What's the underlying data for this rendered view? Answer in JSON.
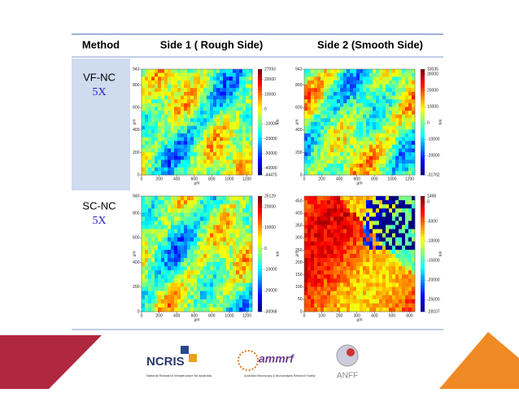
{
  "table": {
    "headers": [
      "Method",
      "Side 1 ( Rough Side)",
      "Side 2 (Smooth Side)"
    ],
    "rows": [
      {
        "method": "VF-NC",
        "magnification": "5X",
        "panels": [
          {
            "xlim": [
              0,
              1260
            ],
            "ylim": [
              0,
              943
            ],
            "xticks": [
              0,
              200,
              400,
              600,
              800,
              1000,
              1200
            ],
            "yticks": [
              0,
              200,
              400,
              600,
              800,
              943
            ],
            "xlabel": "µm",
            "ylabel": "µm",
            "colorbar_ticks": [
              27093,
              20000,
              10000,
              0,
              -10000,
              -20000,
              -30000,
              -40000,
              -44475
            ],
            "colorbar_unit": "nm"
          },
          {
            "xlim": [
              0,
              1260
            ],
            "ylim": [
              0,
              943
            ],
            "xticks": [
              0,
              200,
              400,
              600,
              800,
              1000,
              1200
            ],
            "yticks": [
              0,
              200,
              400,
              600,
              800,
              943
            ],
            "xlabel": "µm",
            "ylabel": "µm",
            "colorbar_ticks": [
              33035,
              30000,
              20000,
              10000,
              0,
              -10000,
              -20000,
              -31762
            ],
            "colorbar_unit": "nm"
          }
        ]
      },
      {
        "method": "SC-NC",
        "magnification": "5X",
        "panels": [
          {
            "xlim": [
              0,
              1260
            ],
            "ylim": [
              0,
              940
            ],
            "xticks": [
              0,
              200,
              400,
              600,
              800,
              1000,
              1200
            ],
            "yticks": [
              0,
              200,
              400,
              600,
              800,
              940
            ],
            "xlabel": "µm",
            "ylabel": "µm",
            "colorbar_ticks": [
              25129,
              20000,
              10000,
              0,
              -10000,
              -20000,
              -30068
            ],
            "colorbar_unit": "nm"
          },
          {
            "xlim": [
              0,
              630
            ],
            "ylim": [
              0,
              470
            ],
            "xticks": [
              0,
              100,
              200,
              300,
              400,
              500,
              600
            ],
            "yticks": [
              0,
              50,
              100,
              150,
              200,
              250,
              300,
              350,
              400,
              450
            ],
            "xlabel": "µm",
            "ylabel": "µm",
            "colorbar_ticks": [
              1498,
              0,
              -5000,
              -10000,
              -15000,
              -20000,
              -25000,
              -28107
            ],
            "colorbar_unit": "nm"
          }
        ]
      }
    ]
  },
  "logos": {
    "ncris": "NCRIS",
    "ncris_sub": "National Research Infrastructure for Australia",
    "ammrf": "ammrf",
    "ammrf_sub": "Australian Microscopy & Microanalysis Research Facility",
    "anff": "ANFF"
  }
}
